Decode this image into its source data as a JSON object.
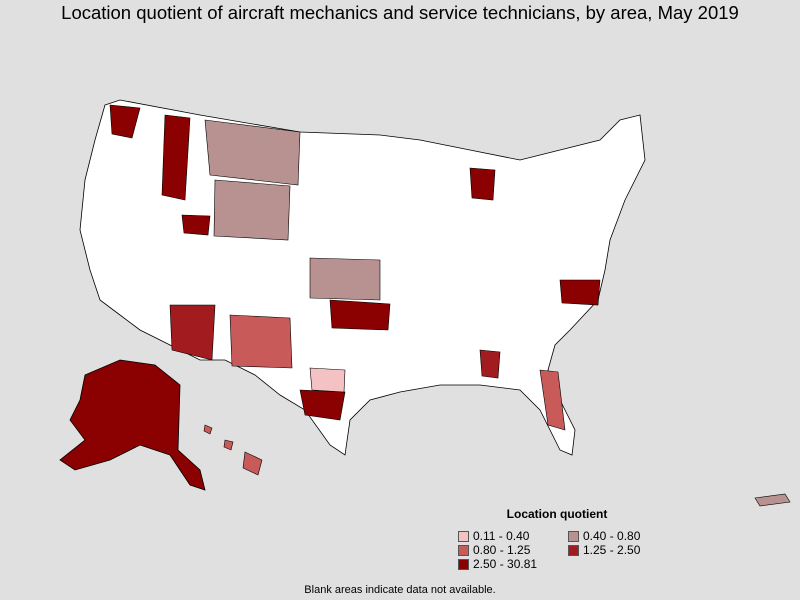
{
  "title": "Location quotient of aircraft mechanics and service technicians, by area, May 2019",
  "legend": {
    "title": "Location quotient",
    "items": [
      {
        "label": "0.11 - 0.40",
        "color": "#f4c2c2"
      },
      {
        "label": "0.40 - 0.80",
        "color": "#b89290"
      },
      {
        "label": "0.80 - 1.25",
        "color": "#c85a5a"
      },
      {
        "label": "1.25 - 2.50",
        "color": "#a11b1f"
      },
      {
        "label": "2.50 - 30.81",
        "color": "#8b0000"
      }
    ]
  },
  "footnote": "Blank areas indicate data not available.",
  "colors": {
    "background": "#e0e0e0",
    "blank_area": "#ffffff",
    "border": "#000000"
  }
}
